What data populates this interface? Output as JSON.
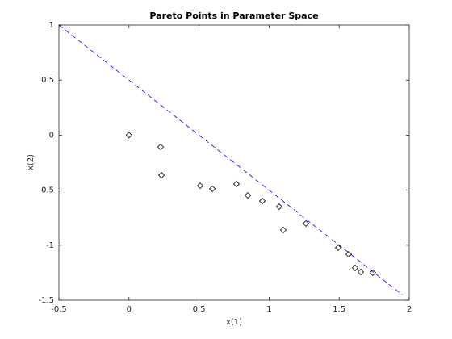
{
  "chart_data": {
    "type": "scatter",
    "title": "Pareto Points in Parameter Space",
    "x_label": "x(1)",
    "y_label": "x(2)",
    "xlim": [
      -0.5,
      2
    ],
    "ylim": [
      -1.5,
      1
    ],
    "xticks": [
      -0.5,
      0,
      0.5,
      1,
      1.5,
      2
    ],
    "yticks": [
      -1.5,
      -1,
      -0.5,
      0,
      0.5,
      1
    ],
    "grid": false,
    "series": [
      {
        "type": "line",
        "dashed": true,
        "color": "#0000ff",
        "x": [
          -0.5,
          1.95
        ],
        "values": [
          1,
          -1.45
        ]
      },
      {
        "type": "scatter",
        "marker": "diamond",
        "color": "#000000",
        "x": [
          0,
          0.226,
          0.232,
          0.508,
          0.595,
          0.767,
          0.848,
          0.952,
          1.072,
          1.101,
          1.263,
          1.493,
          1.568,
          1.614,
          1.654,
          1.74
        ],
        "values": [
          0,
          -0.107,
          -0.364,
          -0.46,
          -0.488,
          -0.444,
          -0.547,
          -0.598,
          -0.65,
          -0.862,
          -0.803,
          -1.023,
          -1.082,
          -1.206,
          -1.243,
          -1.25
        ]
      }
    ]
  }
}
